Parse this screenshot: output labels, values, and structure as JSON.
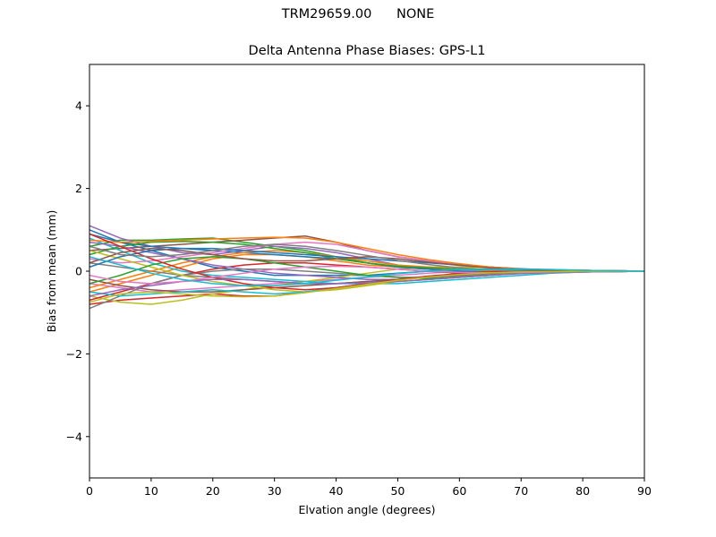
{
  "figure": {
    "suptitle": "TRM29659.00      NONE"
  },
  "chart_data": {
    "type": "line",
    "title": "Delta Antenna Phase Biases: GPS-L1",
    "xlabel": "Elvation angle (degrees)",
    "ylabel": "Bias from mean (mm)",
    "xlim": [
      0,
      90
    ],
    "ylim": [
      -5,
      5
    ],
    "xticks": [
      0,
      10,
      20,
      30,
      40,
      50,
      60,
      70,
      80,
      90
    ],
    "yticks": [
      -4,
      -2,
      0,
      2,
      4
    ],
    "ytick_labels": [
      "−4",
      "−2",
      "0",
      "2",
      "4"
    ],
    "grid": false,
    "legend": "none",
    "x": [
      0,
      5,
      10,
      15,
      20,
      25,
      30,
      35,
      40,
      45,
      50,
      55,
      60,
      65,
      70,
      75,
      80,
      85,
      90
    ],
    "palette": [
      "#1f77b4",
      "#ff7f0e",
      "#2ca02c",
      "#d62728",
      "#9467bd",
      "#8c564b",
      "#e377c2",
      "#7f7f7f",
      "#bcbd22",
      "#17becf"
    ],
    "series": [
      {
        "values": [
          0.9,
          0.7,
          0.5,
          0.3,
          0.1,
          0.0,
          -0.1,
          -0.1,
          -0.1,
          -0.1,
          -0.05,
          0.0,
          0.05,
          0.05,
          0.05,
          0.03,
          0.02,
          0.01,
          0.0
        ]
      },
      {
        "values": [
          -0.5,
          -0.3,
          -0.1,
          0.1,
          0.3,
          0.4,
          0.4,
          0.35,
          0.25,
          0.15,
          0.1,
          0.05,
          0.02,
          0.0,
          -0.02,
          -0.02,
          -0.01,
          0.0,
          0.0
        ]
      },
      {
        "values": [
          0.6,
          0.75,
          0.75,
          0.78,
          0.8,
          0.7,
          0.6,
          0.5,
          0.35,
          0.2,
          0.1,
          0.05,
          0.0,
          -0.05,
          -0.05,
          -0.04,
          -0.02,
          -0.01,
          0.0
        ]
      },
      {
        "values": [
          -0.8,
          -0.7,
          -0.65,
          -0.6,
          -0.55,
          -0.6,
          -0.6,
          -0.5,
          -0.4,
          -0.3,
          -0.25,
          -0.2,
          -0.15,
          -0.1,
          -0.05,
          -0.02,
          0.0,
          0.0,
          0.0
        ]
      },
      {
        "values": [
          1.1,
          0.8,
          0.6,
          0.45,
          0.4,
          0.5,
          0.6,
          0.55,
          0.45,
          0.3,
          0.15,
          0.05,
          0.0,
          -0.05,
          -0.05,
          -0.03,
          -0.02,
          -0.01,
          0.0
        ]
      },
      {
        "values": [
          0.5,
          0.55,
          0.6,
          0.65,
          0.7,
          0.75,
          0.8,
          0.85,
          0.7,
          0.5,
          0.35,
          0.25,
          0.15,
          0.1,
          0.05,
          0.03,
          0.02,
          0.01,
          0.0
        ]
      },
      {
        "values": [
          -0.3,
          -0.4,
          -0.5,
          -0.45,
          -0.4,
          -0.35,
          -0.3,
          -0.25,
          -0.2,
          -0.15,
          -0.1,
          -0.05,
          0.0,
          0.05,
          0.05,
          0.04,
          0.02,
          0.01,
          0.0
        ]
      },
      {
        "values": [
          0.2,
          0.1,
          0.0,
          -0.1,
          -0.15,
          -0.2,
          -0.25,
          -0.3,
          -0.3,
          -0.25,
          -0.2,
          -0.15,
          -0.1,
          -0.05,
          0.0,
          0.02,
          0.02,
          0.01,
          0.0
        ]
      },
      {
        "values": [
          -0.6,
          -0.75,
          -0.8,
          -0.7,
          -0.55,
          -0.45,
          -0.35,
          -0.25,
          -0.15,
          -0.05,
          0.05,
          0.1,
          0.1,
          0.08,
          0.05,
          0.03,
          0.02,
          0.01,
          0.0
        ]
      },
      {
        "values": [
          0.8,
          0.5,
          0.2,
          0.0,
          -0.1,
          -0.15,
          -0.2,
          -0.25,
          -0.3,
          -0.3,
          -0.3,
          -0.25,
          -0.2,
          -0.15,
          -0.1,
          -0.05,
          -0.02,
          -0.01,
          0.0
        ]
      },
      {
        "values": [
          1.0,
          0.7,
          0.6,
          0.55,
          0.5,
          0.45,
          0.4,
          0.35,
          0.3,
          0.2,
          0.1,
          0.05,
          0.0,
          -0.02,
          -0.03,
          -0.02,
          -0.01,
          0.0,
          0.0
        ]
      },
      {
        "values": [
          -0.4,
          -0.2,
          0.0,
          0.2,
          0.35,
          0.45,
          0.5,
          0.45,
          0.35,
          0.25,
          0.15,
          0.1,
          0.05,
          0.02,
          0.0,
          0.0,
          0.0,
          0.0,
          0.0
        ]
      },
      {
        "values": [
          0.4,
          0.6,
          0.7,
          0.72,
          0.7,
          0.65,
          0.55,
          0.45,
          0.3,
          0.2,
          0.12,
          0.08,
          0.05,
          0.03,
          0.02,
          0.01,
          0.0,
          0.0,
          0.0
        ]
      },
      {
        "values": [
          -0.7,
          -0.5,
          -0.3,
          -0.1,
          0.05,
          0.15,
          0.2,
          0.2,
          0.15,
          0.1,
          0.05,
          0.0,
          -0.05,
          -0.05,
          -0.04,
          -0.03,
          -0.02,
          -0.01,
          0.0
        ]
      },
      {
        "values": [
          0.7,
          0.6,
          0.45,
          0.3,
          0.15,
          0.05,
          -0.05,
          -0.1,
          -0.15,
          -0.2,
          -0.2,
          -0.15,
          -0.1,
          -0.05,
          0.0,
          0.02,
          0.02,
          0.01,
          0.0
        ]
      },
      {
        "values": [
          -0.2,
          -0.35,
          -0.45,
          -0.5,
          -0.5,
          -0.45,
          -0.4,
          -0.35,
          -0.3,
          -0.25,
          -0.2,
          -0.15,
          -0.1,
          -0.05,
          -0.02,
          0.0,
          0.0,
          0.0,
          0.0
        ]
      },
      {
        "values": [
          0.3,
          0.2,
          0.25,
          0.35,
          0.45,
          0.55,
          0.65,
          0.7,
          0.65,
          0.5,
          0.35,
          0.25,
          0.15,
          0.08,
          0.04,
          0.02,
          0.01,
          0.0,
          0.0
        ]
      },
      {
        "values": [
          -0.9,
          -0.6,
          -0.3,
          -0.1,
          0.0,
          0.05,
          0.05,
          0.0,
          -0.05,
          -0.1,
          -0.15,
          -0.15,
          -0.12,
          -0.08,
          -0.05,
          -0.03,
          -0.02,
          -0.01,
          0.0
        ]
      },
      {
        "values": [
          0.5,
          0.3,
          0.1,
          -0.1,
          -0.25,
          -0.35,
          -0.45,
          -0.5,
          -0.45,
          -0.35,
          -0.25,
          -0.2,
          -0.15,
          -0.1,
          -0.05,
          -0.03,
          -0.02,
          -0.01,
          0.0
        ]
      },
      {
        "values": [
          -0.5,
          -0.6,
          -0.55,
          -0.5,
          -0.45,
          -0.5,
          -0.55,
          -0.5,
          -0.4,
          -0.3,
          -0.2,
          -0.12,
          -0.06,
          -0.02,
          0.0,
          0.01,
          0.01,
          0.0,
          0.0
        ]
      },
      {
        "values": [
          0.1,
          0.35,
          0.5,
          0.55,
          0.55,
          0.5,
          0.45,
          0.4,
          0.35,
          0.3,
          0.25,
          0.2,
          0.15,
          0.1,
          0.06,
          0.03,
          0.02,
          0.01,
          0.0
        ]
      },
      {
        "values": [
          0.75,
          0.7,
          0.72,
          0.75,
          0.78,
          0.8,
          0.82,
          0.8,
          0.7,
          0.55,
          0.4,
          0.28,
          0.18,
          0.1,
          0.05,
          0.02,
          0.01,
          0.0,
          0.0
        ]
      },
      {
        "values": [
          -0.3,
          -0.1,
          0.15,
          0.3,
          0.35,
          0.3,
          0.2,
          0.1,
          0.0,
          -0.1,
          -0.15,
          -0.18,
          -0.15,
          -0.1,
          -0.05,
          -0.02,
          -0.01,
          0.0,
          0.0
        ]
      },
      {
        "values": [
          0.9,
          0.6,
          0.3,
          0.05,
          -0.15,
          -0.3,
          -0.4,
          -0.45,
          -0.4,
          -0.3,
          -0.2,
          -0.12,
          -0.06,
          -0.02,
          0.0,
          0.01,
          0.01,
          0.0,
          0.0
        ]
      },
      {
        "values": [
          -0.6,
          -0.45,
          -0.35,
          -0.25,
          -0.2,
          -0.2,
          -0.25,
          -0.3,
          -0.3,
          -0.28,
          -0.25,
          -0.2,
          -0.15,
          -0.1,
          -0.06,
          -0.03,
          -0.02,
          -0.01,
          0.0
        ]
      },
      {
        "values": [
          0.2,
          0.45,
          0.55,
          0.5,
          0.4,
          0.3,
          0.25,
          0.25,
          0.3,
          0.35,
          0.3,
          0.22,
          0.14,
          0.08,
          0.04,
          0.02,
          0.01,
          0.0,
          0.0
        ]
      },
      {
        "values": [
          -0.1,
          -0.25,
          -0.3,
          -0.25,
          -0.15,
          -0.05,
          0.05,
          0.1,
          0.12,
          0.1,
          0.05,
          0.0,
          -0.03,
          -0.04,
          -0.03,
          -0.02,
          -0.01,
          0.0,
          0.0
        ]
      },
      {
        "values": [
          0.6,
          0.4,
          0.35,
          0.4,
          0.5,
          0.6,
          0.65,
          0.6,
          0.5,
          0.38,
          0.26,
          0.16,
          0.08,
          0.03,
          0.0,
          -0.01,
          -0.01,
          0.0,
          0.0
        ]
      },
      {
        "values": [
          -0.75,
          -0.55,
          -0.5,
          -0.55,
          -0.6,
          -0.62,
          -0.6,
          -0.52,
          -0.42,
          -0.32,
          -0.22,
          -0.14,
          -0.08,
          -0.04,
          -0.02,
          -0.01,
          0.0,
          0.0,
          0.0
        ]
      },
      {
        "values": [
          0.35,
          0.15,
          -0.05,
          -0.2,
          -0.3,
          -0.35,
          -0.35,
          -0.3,
          -0.22,
          -0.14,
          -0.06,
          0.0,
          0.04,
          0.05,
          0.05,
          0.04,
          0.02,
          0.01,
          0.0
        ]
      }
    ]
  }
}
